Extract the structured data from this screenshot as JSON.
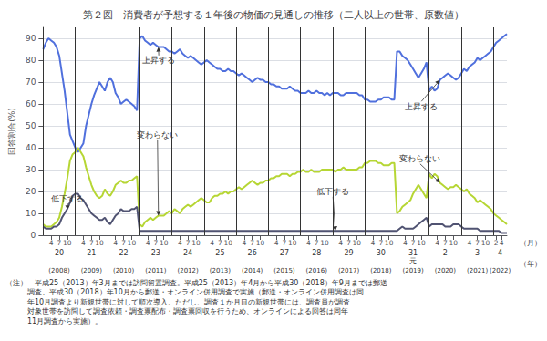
{
  "chart_data": {
    "type": "line",
    "title": "第２図　消費者が予想する１年後の物価の見通しの推移（二人以上の世帯、原数値）",
    "y_label": "回答割合(%)",
    "ylim": [
      0,
      95
    ],
    "yticks": [
      0,
      10,
      20,
      30,
      40,
      50,
      60,
      70,
      80,
      90
    ],
    "grid": true,
    "categories": [
      null,
      null,
      null,
      "4",
      null,
      null,
      "7",
      null,
      null,
      "10",
      null,
      null,
      null,
      null,
      null,
      "4",
      null,
      null,
      "7",
      null,
      null,
      "10",
      null,
      null,
      null,
      null,
      null,
      "4",
      null,
      null,
      "7",
      null,
      null,
      "10",
      null,
      null,
      null,
      null,
      null,
      "4",
      null,
      null,
      "7",
      null,
      null,
      "10",
      null,
      null,
      null,
      null,
      null,
      "4",
      null,
      null,
      "7",
      null,
      null,
      "10",
      null,
      null,
      null,
      null,
      null,
      "4",
      null,
      null,
      "7",
      null,
      null,
      "10",
      null,
      null,
      null,
      null,
      null,
      "4",
      null,
      null,
      "7",
      null,
      null,
      "10",
      null,
      null,
      null,
      null,
      null,
      "4",
      null,
      null,
      "7",
      null,
      null,
      "10",
      null,
      null,
      null,
      null,
      null,
      "4",
      null,
      null,
      "7",
      null,
      null,
      "10",
      null,
      null,
      null,
      null,
      null,
      "4",
      null,
      null,
      "7",
      null,
      null,
      "10",
      null,
      null,
      null,
      null,
      null,
      "4",
      null,
      null,
      "7",
      null,
      null,
      "10",
      null,
      null,
      null,
      null,
      null,
      "4",
      null,
      null,
      "7",
      null,
      null,
      "10",
      null,
      null,
      null,
      null,
      null,
      "4",
      null,
      null,
      "7",
      null,
      null,
      "10",
      null,
      null,
      null,
      null,
      null,
      "4",
      null,
      null,
      "7",
      null,
      null,
      "10",
      null,
      null,
      null,
      "2",
      null,
      "4",
      null,
      null
    ],
    "series": [
      {
        "name": "上昇する",
        "values": [
          85,
          88,
          90,
          89,
          88,
          86,
          82,
          74,
          66,
          56,
          46,
          43,
          40,
          38,
          40,
          42,
          50,
          55,
          60,
          64,
          67,
          70,
          68,
          66,
          70,
          72,
          70,
          65,
          63,
          60,
          61,
          62,
          61,
          60,
          59,
          57,
          90,
          91,
          89,
          88,
          87,
          88,
          87,
          86,
          86,
          86,
          85,
          84,
          84,
          83,
          84,
          85,
          83,
          82,
          81,
          82,
          81,
          80,
          79,
          78,
          79,
          80,
          79,
          78,
          77,
          76,
          76,
          75,
          75,
          76,
          75,
          75,
          74,
          73,
          74,
          73,
          72,
          71,
          70,
          71,
          72,
          71,
          71,
          70,
          70,
          69,
          69,
          68,
          68,
          67,
          67,
          67,
          68,
          67,
          66,
          66,
          65,
          65,
          65,
          66,
          65,
          65,
          66,
          65,
          65,
          64,
          65,
          64,
          65,
          65,
          65,
          64,
          64,
          65,
          65,
          65,
          65,
          65,
          64,
          64,
          62,
          62,
          61,
          61,
          61,
          62,
          62,
          63,
          63,
          63,
          62,
          62,
          84,
          84,
          82,
          81,
          80,
          78,
          76,
          74,
          72,
          74,
          76,
          79,
          66,
          68,
          66,
          67,
          71,
          72,
          73,
          74,
          73,
          72,
          71,
          72,
          74,
          76,
          75,
          77,
          78,
          79,
          81,
          80,
          81,
          82,
          83,
          84,
          86,
          88,
          89,
          90,
          91,
          92
        ]
      },
      {
        "name": "変わらない",
        "values": [
          5,
          4,
          4,
          4,
          5,
          6,
          8,
          13,
          19,
          26,
          34,
          37,
          38,
          40,
          38,
          36,
          31,
          27,
          23,
          20,
          18,
          17,
          18,
          21,
          19,
          18,
          20,
          23,
          24,
          25,
          24,
          24,
          25,
          25,
          26,
          27,
          5,
          4,
          6,
          7,
          8,
          7,
          8,
          9,
          9,
          9,
          10,
          11,
          10,
          12,
          11,
          10,
          12,
          13,
          14,
          13,
          14,
          15,
          16,
          17,
          16,
          15,
          15,
          17,
          18,
          18,
          19,
          19,
          20,
          19,
          20,
          20,
          21,
          22,
          21,
          22,
          23,
          24,
          25,
          24,
          23,
          24,
          24,
          25,
          25,
          26,
          26,
          27,
          27,
          28,
          28,
          28,
          27,
          28,
          28,
          29,
          29,
          30,
          29,
          29,
          30,
          29,
          29,
          29,
          30,
          30,
          30,
          30,
          30,
          29,
          30,
          30,
          31,
          30,
          30,
          30,
          30,
          30,
          31,
          31,
          33,
          33,
          34,
          34,
          34,
          33,
          33,
          32,
          32,
          32,
          33,
          33,
          10,
          11,
          13,
          14,
          15,
          16,
          19,
          21,
          23,
          21,
          19,
          17,
          28,
          26,
          28,
          27,
          24,
          23,
          22,
          21,
          22,
          22,
          23,
          22,
          21,
          20,
          21,
          19,
          18,
          17,
          15,
          16,
          15,
          14,
          13,
          12,
          10,
          9,
          8,
          7,
          6,
          5
        ]
      },
      {
        "name": "低下する",
        "values": [
          4,
          3,
          3,
          3,
          4,
          4,
          5,
          8,
          10,
          12,
          15,
          18,
          19,
          19,
          17,
          16,
          14,
          12,
          10,
          9,
          8,
          7,
          7,
          8,
          6,
          5,
          7,
          9,
          10,
          12,
          11,
          11,
          11,
          12,
          12,
          13,
          2,
          2,
          2,
          2,
          2,
          2,
          2,
          2,
          2,
          2,
          2,
          2,
          2,
          2,
          2,
          2,
          2,
          2,
          2,
          2,
          2,
          2,
          2,
          2,
          2,
          2,
          2,
          2,
          2,
          2,
          2,
          2,
          2,
          2,
          2,
          2,
          2,
          2,
          2,
          2,
          2,
          2,
          2,
          2,
          2,
          2,
          2,
          2,
          2,
          2,
          2,
          2,
          2,
          2,
          2,
          2,
          2,
          2,
          2,
          2,
          2,
          2,
          2,
          2,
          2,
          2,
          2,
          2,
          2,
          2,
          2,
          2,
          2,
          2,
          2,
          2,
          2,
          2,
          2,
          2,
          2,
          2,
          2,
          2,
          2,
          2,
          2,
          2,
          2,
          2,
          2,
          2,
          2,
          2,
          2,
          2,
          2,
          3,
          4,
          3,
          3,
          3,
          3,
          4,
          5,
          6,
          7,
          8,
          4,
          5,
          5,
          5,
          5,
          5,
          4,
          4,
          4,
          5,
          5,
          5,
          4,
          3,
          3,
          3,
          3,
          3,
          3,
          2,
          2,
          2,
          2,
          2,
          2,
          2,
          2,
          1,
          1,
          1
        ]
      }
    ],
    "year_groups": [
      {
        "start": 0,
        "label": "20",
        "western": "(2008)"
      },
      {
        "start": 12,
        "label": "21",
        "western": "(2009)"
      },
      {
        "start": 24,
        "label": "22",
        "western": "(2010)"
      },
      {
        "start": 36,
        "label": "23",
        "western": "(2011)"
      },
      {
        "start": 48,
        "label": "24",
        "western": "(2012)"
      },
      {
        "start": 60,
        "label": "25",
        "western": "(2013)"
      },
      {
        "start": 72,
        "label": "26",
        "western": "(2014)"
      },
      {
        "start": 84,
        "label": "27",
        "western": "(2015)"
      },
      {
        "start": 96,
        "label": "28",
        "western": "(2016)"
      },
      {
        "start": 108,
        "label": "29",
        "western": "(2017)"
      },
      {
        "start": 120,
        "label": "30",
        "western": "(2018)"
      },
      {
        "start": 132,
        "label": "31\n元",
        "western": "(2019)"
      },
      {
        "start": 144,
        "label": "2",
        "western": "(2020)"
      },
      {
        "start": 156,
        "label": "3",
        "western": "(2021)"
      },
      {
        "start": 168,
        "label": "4",
        "western": "(2022)"
      }
    ],
    "month_unit": "（月）",
    "year_unit": "（年）",
    "annotations": [
      {
        "text": "上昇する",
        "x": 43
      },
      {
        "text": "変わらない",
        "x": 43
      },
      {
        "text": "低下する",
        "x": 9
      },
      {
        "text": "上昇する",
        "x": 148
      },
      {
        "text": "変わらない",
        "x": 148
      },
      {
        "text": "低下する",
        "x": 109
      }
    ],
    "notes": [
      "（注）　平成25（2013）年3月までは訪問留置調査。平成25（2013）年4月から平成30（2018）年9月までは郵送",
      "　　　調査、平成30（2018）年10月から郵送・オンライン併用調査で実施（郵送・オンライン併用調査は同",
      "　　　年10月調査より新規世帯に対して順次導入。ただし、調査１か月目の新規世帯には、調査員が調査",
      "　　　対象世帯を訪問して調査依頼・調査票配布・調査票回収を行うため、オンラインによる回答は同年",
      "　　　11月調査から実施）。"
    ]
  }
}
